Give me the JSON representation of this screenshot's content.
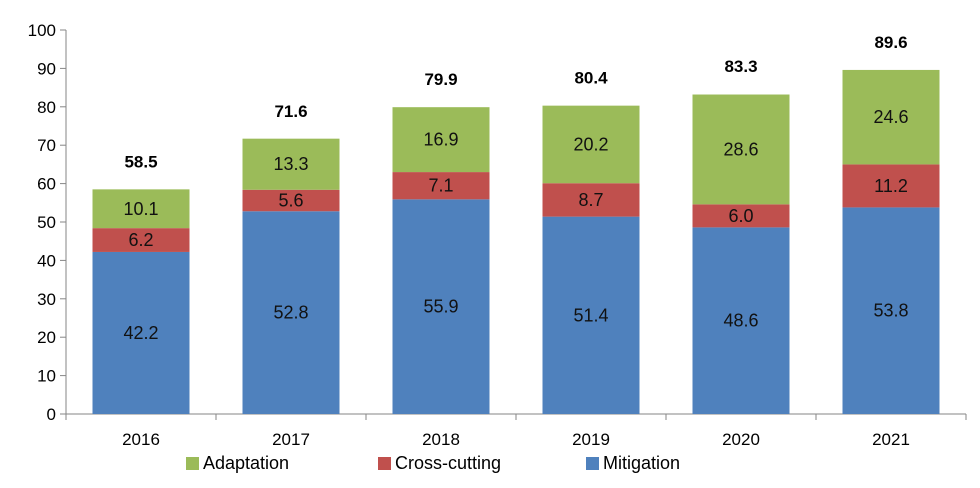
{
  "chart_data": {
    "type": "bar",
    "stacked": true,
    "categories": [
      "2016",
      "2017",
      "2018",
      "2019",
      "2020",
      "2021"
    ],
    "series": [
      {
        "name": "Mitigation",
        "color": "#4f81bd",
        "values": [
          42.2,
          52.8,
          55.9,
          51.4,
          48.6,
          53.8
        ],
        "labels": [
          "42.2",
          "52.8",
          "55.9",
          "51.4",
          "48.6",
          "53.8"
        ]
      },
      {
        "name": "Cross-cutting",
        "color": "#c0504d",
        "values": [
          6.2,
          5.6,
          7.1,
          8.7,
          6.0,
          11.2
        ],
        "labels": [
          "6.2",
          "5.6",
          "7.1",
          "8.7",
          "6.0",
          "11.2"
        ]
      },
      {
        "name": "Adaptation",
        "color": "#9bbb59",
        "values": [
          10.1,
          13.3,
          16.9,
          20.2,
          28.6,
          24.6
        ],
        "labels": [
          "10.1",
          "13.3",
          "16.9",
          "20.2",
          "28.6",
          "24.6"
        ]
      }
    ],
    "totals": [
      58.5,
      71.6,
      79.9,
      80.4,
      83.3,
      89.6
    ],
    "total_labels": [
      "58.5",
      "71.6",
      "79.9",
      "80.4",
      "83.3",
      "89.6"
    ],
    "ylim": [
      0,
      100
    ],
    "yticks": [
      "0",
      "10",
      "20",
      "30",
      "40",
      "50",
      "60",
      "70",
      "80",
      "90",
      "100"
    ],
    "grid": false,
    "legend": {
      "placement": "bottom",
      "order": [
        "Adaptation",
        "Cross-cutting",
        "Mitigation"
      ]
    }
  }
}
